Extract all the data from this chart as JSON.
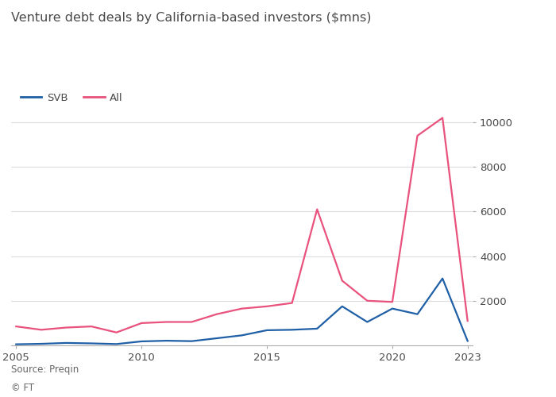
{
  "title": "Venture debt deals by California-based investors ($mns)",
  "source": "Source: Preqin",
  "ft_credit": "© FT",
  "legend": [
    "SVB",
    "All"
  ],
  "svb_color": "#1f5fa6",
  "all_color": "#e8527c",
  "background_color": "#ffffff",
  "years": [
    2005,
    2006,
    2007,
    2008,
    2009,
    2010,
    2011,
    2012,
    2013,
    2014,
    2015,
    2016,
    2017,
    2018,
    2019,
    2020,
    2021,
    2022,
    2023
  ],
  "svb_values": [
    50,
    70,
    110,
    90,
    60,
    180,
    210,
    190,
    320,
    450,
    680,
    700,
    750,
    1750,
    1050,
    1650,
    1400,
    3000,
    200
  ],
  "all_values": [
    850,
    700,
    800,
    850,
    580,
    1000,
    1050,
    1050,
    1400,
    1650,
    1750,
    1900,
    6100,
    2900,
    2000,
    1950,
    9400,
    10200,
    1100
  ],
  "ylim": [
    0,
    10500
  ],
  "yticks": [
    2000,
    4000,
    6000,
    8000,
    10000
  ],
  "xlim_min": 2005,
  "xlim_max": 2023,
  "xticks": [
    2005,
    2010,
    2015,
    2020,
    2023
  ],
  "grid_color": "#dddddd",
  "line_width": 1.6,
  "title_fontsize": 11.5,
  "tick_fontsize": 9.5,
  "legend_fontsize": 9.5,
  "text_color": "#4a4a4a",
  "source_color": "#666666"
}
